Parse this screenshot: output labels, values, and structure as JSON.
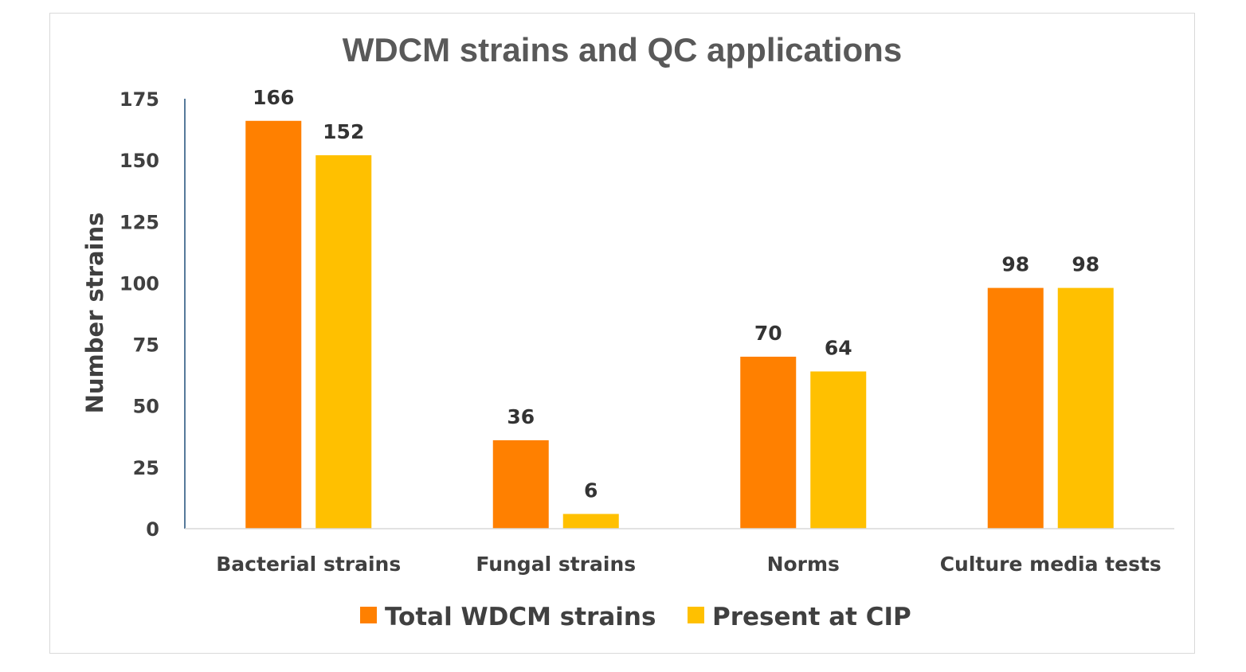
{
  "chart_data": {
    "type": "bar",
    "title": "WDCM strains and QC applications",
    "xlabel": "",
    "ylabel": "Number strains",
    "categories": [
      "Bacterial strains",
      "Fungal strains",
      "Norms",
      "Culture media tests"
    ],
    "series": [
      {
        "name": "Total WDCM strains",
        "values": [
          166,
          36,
          70,
          98
        ],
        "color": "#ff8000"
      },
      {
        "name": "Present at CIP",
        "values": [
          152,
          6,
          64,
          98
        ],
        "color": "#ffc000"
      }
    ],
    "ylim": [
      0,
      175
    ],
    "yticks": [
      0,
      25,
      50,
      75,
      100,
      125,
      150,
      175
    ],
    "grid": false,
    "data_labels": true,
    "legend_position": "bottom"
  }
}
